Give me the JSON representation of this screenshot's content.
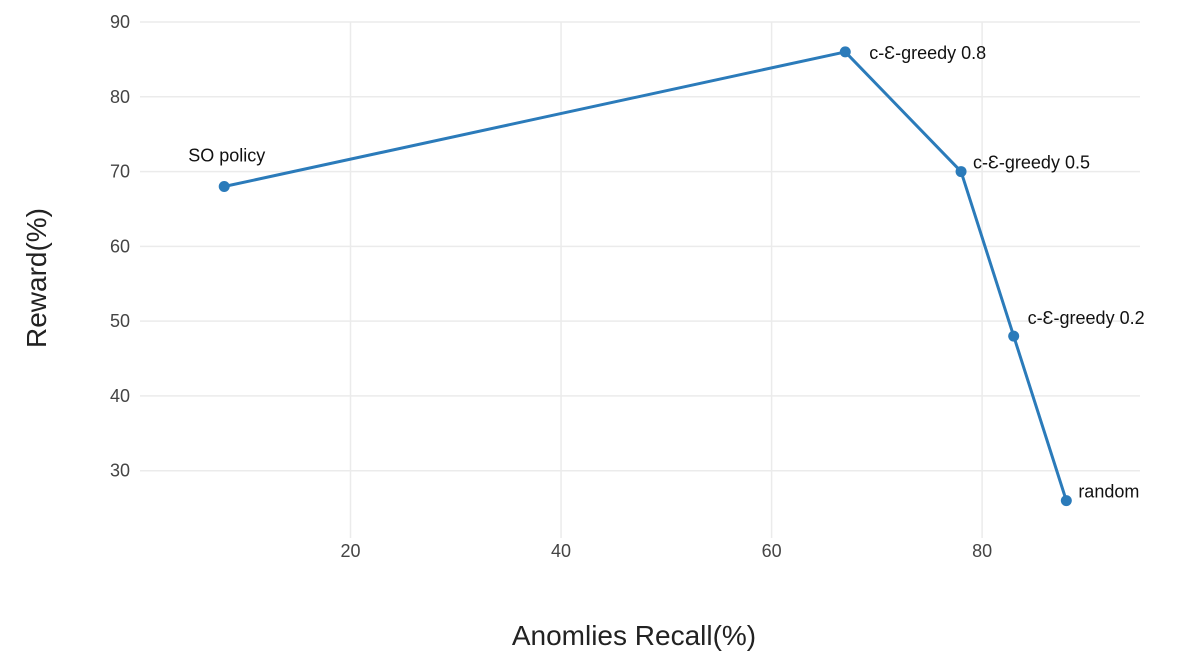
{
  "chart_data": {
    "type": "line",
    "xlabel": "Anomlies Recall(%)",
    "ylabel": "Reward(%)",
    "xlim": [
      0,
      95
    ],
    "ylim": [
      21,
      90
    ],
    "xticks": [
      20,
      40,
      60,
      80
    ],
    "yticks": [
      30,
      40,
      50,
      60,
      70,
      80,
      90
    ],
    "grid": true,
    "legend": "none",
    "series": [
      {
        "color": "#2b7bba",
        "points": [
          {
            "x": 8,
            "y": 68,
            "label": "SO policy"
          },
          {
            "x": 67,
            "y": 86,
            "label": "c-Ɛ-greedy 0.8"
          },
          {
            "x": 78,
            "y": 70,
            "label": "c-Ɛ-greedy 0.5"
          },
          {
            "x": 83,
            "y": 48,
            "label": "c-Ɛ-greedy 0.2"
          },
          {
            "x": 88,
            "y": 26,
            "label": "random"
          }
        ]
      }
    ]
  }
}
